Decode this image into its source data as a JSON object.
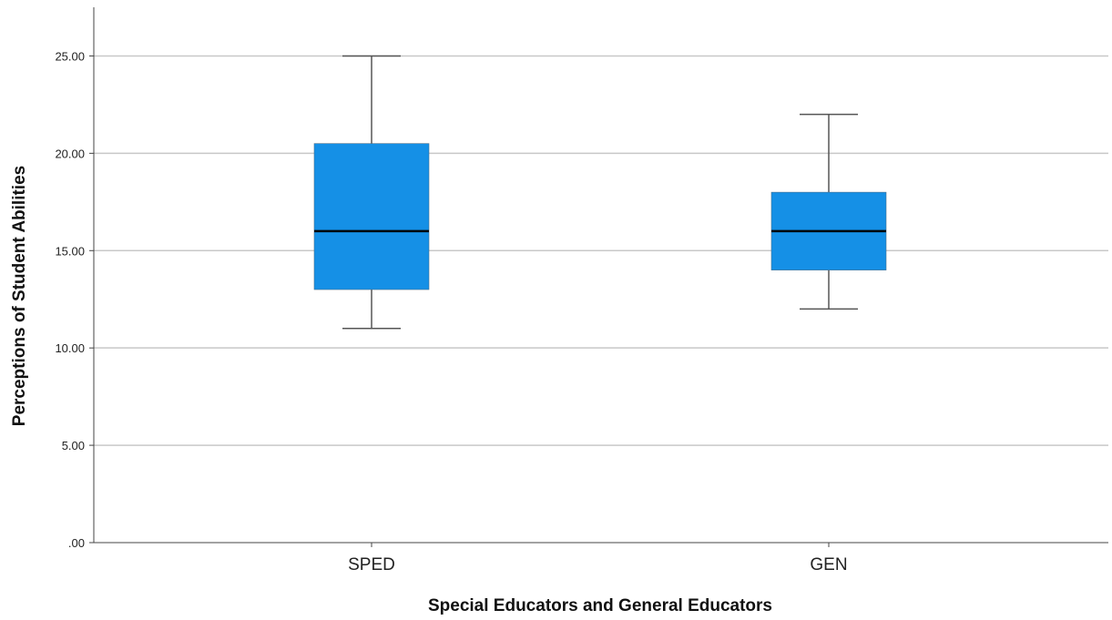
{
  "chart_data": {
    "type": "boxplot",
    "title": "",
    "xlabel": "Special Educators and General Educators",
    "ylabel": "Perceptions of Student Abilities",
    "ylim": [
      0,
      27.5
    ],
    "yticks": [
      ".00",
      "5.00",
      "10.00",
      "15.00",
      "20.00",
      "25.00"
    ],
    "grid": "horizontal",
    "categories": [
      "SPED",
      "GEN"
    ],
    "boxes": [
      {
        "category": "SPED",
        "min": 11,
        "q1": 13,
        "median": 16,
        "q3": 20.5,
        "max": 25
      },
      {
        "category": "GEN",
        "min": 12,
        "q1": 14,
        "median": 16,
        "q3": 18,
        "max": 22
      }
    ],
    "colors": {
      "box_fill": "#1590e6",
      "median_line": "#000000",
      "whisker": "#555555",
      "grid": "#c8c8c8",
      "axis": "#444444"
    }
  }
}
